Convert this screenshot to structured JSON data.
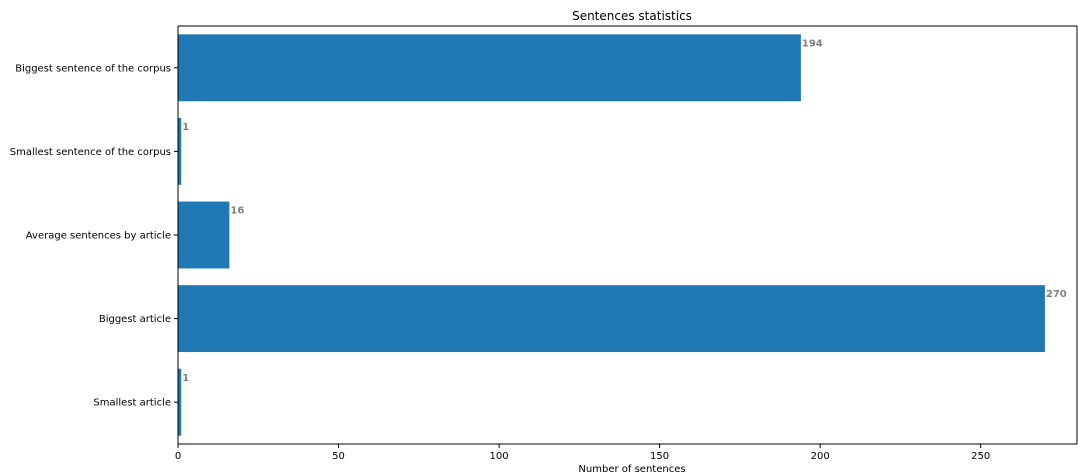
{
  "chart_data": {
    "type": "bar",
    "orientation": "horizontal",
    "title": "Sentences statistics",
    "xlabel": "Number of sentences",
    "ylabel": "",
    "categories": [
      "Biggest sentence of the corpus",
      "Smallest sentence of the corpus",
      "Average sentences by article",
      "Biggest article",
      "Smallest article"
    ],
    "values": [
      194,
      1,
      16,
      270,
      1
    ],
    "data_labels": [
      "194",
      "1",
      "16",
      "270",
      "1"
    ],
    "xlim": [
      0,
      280
    ],
    "xticks": [
      0,
      50,
      100,
      150,
      200,
      250
    ],
    "grid": false,
    "legend": "none",
    "colors": {
      "bar": "#1f77b4",
      "data_label": "#808080",
      "axis": "#000000"
    }
  }
}
